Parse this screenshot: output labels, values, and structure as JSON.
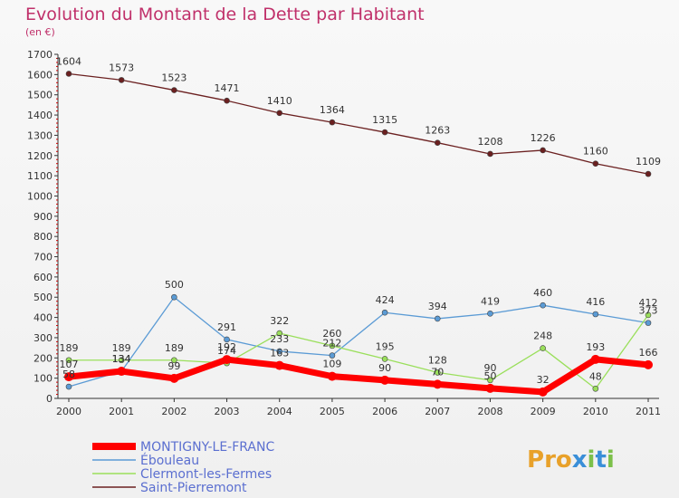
{
  "chart_data": {
    "type": "line",
    "title": "Evolution du Montant de la Dette par Habitant",
    "subtitle": "(en €)",
    "x": [
      "2000",
      "2001",
      "2002",
      "2003",
      "2004",
      "2005",
      "2006",
      "2007",
      "2008",
      "2009",
      "2010",
      "2011"
    ],
    "ylim": [
      0,
      1700
    ],
    "yticks": [
      0,
      100,
      200,
      300,
      400,
      500,
      600,
      700,
      800,
      900,
      1000,
      1100,
      1200,
      1300,
      1400,
      1500,
      1600,
      1700
    ],
    "grid": false,
    "legend_position": "bottom-left",
    "series": [
      {
        "name": "MONTIGNY-LE-FRANC",
        "color": "#ff0000",
        "values": [
          107,
          134,
          99,
          192,
          163,
          109,
          90,
          70,
          50,
          32,
          193,
          166
        ],
        "labels": [
          "107",
          "134",
          "99",
          "192",
          "163",
          "109",
          "90",
          "70",
          "50",
          "32",
          "193",
          "166"
        ]
      },
      {
        "name": "Ébouleau",
        "color": "#5b9bd5",
        "values": [
          58,
          134,
          500,
          291,
          233,
          212,
          424,
          394,
          419,
          460,
          416,
          373
        ],
        "labels": [
          "58",
          "134",
          "500",
          "291",
          "233",
          "212",
          "424",
          "394",
          "419",
          "460",
          "416",
          "373"
        ]
      },
      {
        "name": "Clermont-les-Fermes",
        "color": "#9adf5b",
        "values": [
          189,
          189,
          189,
          174,
          322,
          260,
          195,
          128,
          90,
          248,
          48,
          412
        ],
        "labels": [
          "189",
          "189",
          "189",
          "174",
          "322",
          "260",
          "195",
          "128",
          "90",
          "248",
          "48",
          "412"
        ]
      },
      {
        "name": "Saint-Pierremont",
        "color": "#6b2020",
        "values": [
          1604,
          1573,
          1523,
          1471,
          1410,
          1364,
          1315,
          1263,
          1208,
          1226,
          1160,
          1109
        ],
        "labels": [
          "1604",
          "1573",
          "1523",
          "1471",
          "1410",
          "1364",
          "1315",
          "1263",
          "1208",
          "1226",
          "1160",
          "1109"
        ]
      }
    ]
  },
  "colors": {
    "title": "#c0306a",
    "axis": "#333333",
    "tick_text": "#333333",
    "logo_p": "#e8a12a",
    "logo_x": "#3a8fd8",
    "logo_i": "#7cc04a"
  },
  "logo": {
    "text": "Proxiti"
  }
}
